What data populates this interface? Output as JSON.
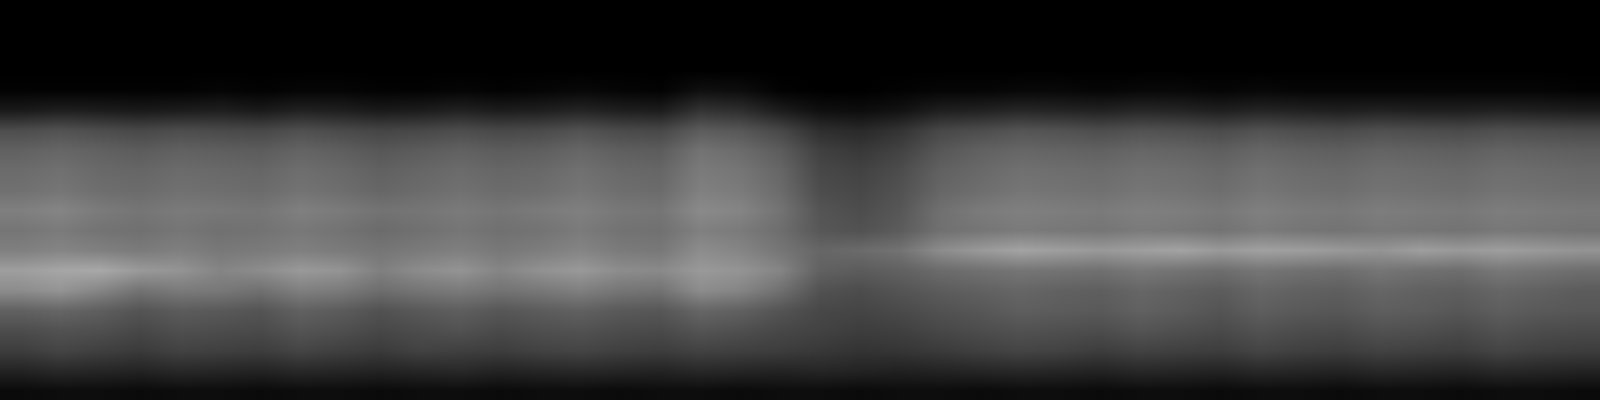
{
  "chart_data": {
    "type": "heatmap",
    "color": "gray",
    "tick_labels": false,
    "zlim": [
      0,
      100
    ],
    "z": [
      [
        4,
        5,
        5,
        4,
        5,
        5,
        4,
        5,
        5,
        4,
        5,
        5,
        4,
        5,
        5,
        4,
        5,
        5,
        4,
        5,
        5,
        4,
        5,
        5,
        4,
        5,
        5,
        4,
        5,
        5,
        4,
        5,
        5,
        4,
        5,
        5,
        4,
        5,
        5,
        4
      ],
      [
        14,
        16,
        15,
        14,
        16,
        15,
        14,
        16,
        15,
        14,
        15,
        16,
        14,
        15,
        16,
        15,
        14,
        16,
        15,
        14,
        15,
        14,
        13,
        14,
        15,
        16,
        15,
        14,
        16,
        15,
        14,
        16,
        15,
        14,
        16,
        15,
        14,
        16,
        15,
        14
      ],
      [
        24,
        27,
        25,
        23,
        26,
        25,
        24,
        27,
        25,
        23,
        26,
        25,
        24,
        26,
        27,
        25,
        24,
        26,
        25,
        24,
        22,
        20,
        21,
        23,
        25,
        27,
        26,
        24,
        26,
        25,
        24,
        27,
        25,
        24,
        26,
        25,
        24,
        27,
        25,
        24
      ],
      [
        30,
        32,
        31,
        28,
        31,
        30,
        29,
        33,
        31,
        28,
        30,
        32,
        29,
        31,
        32,
        30,
        29,
        33,
        31,
        28,
        26,
        24,
        25,
        28,
        30,
        32,
        31,
        30,
        33,
        31,
        29,
        32,
        30,
        29,
        32,
        31,
        29,
        32,
        30,
        29
      ],
      [
        38,
        40,
        37,
        33,
        36,
        35,
        33,
        38,
        36,
        32,
        35,
        37,
        34,
        36,
        38,
        35,
        34,
        40,
        38,
        33,
        28,
        27,
        29,
        32,
        34,
        37,
        36,
        35,
        38,
        36,
        33,
        37,
        35,
        34,
        37,
        36,
        34,
        37,
        35,
        34
      ],
      [
        55,
        58,
        52,
        45,
        48,
        47,
        44,
        50,
        48,
        43,
        46,
        48,
        45,
        47,
        50,
        46,
        45,
        55,
        52,
        44,
        32,
        30,
        33,
        36,
        38,
        40,
        38,
        37,
        40,
        38,
        36,
        40,
        38,
        37,
        40,
        38,
        37,
        40,
        38,
        36
      ],
      [
        62,
        65,
        66,
        60,
        58,
        52,
        55,
        60,
        58,
        50,
        55,
        58,
        52,
        57,
        60,
        55,
        54,
        60,
        58,
        52,
        38,
        36,
        38,
        42,
        44,
        46,
        45,
        44,
        47,
        45,
        43,
        46,
        44,
        43,
        46,
        44,
        43,
        47,
        45,
        43
      ],
      [
        50,
        52,
        50,
        48,
        50,
        47,
        48,
        50,
        48,
        46,
        48,
        50,
        47,
        49,
        52,
        48,
        47,
        55,
        52,
        46,
        40,
        42,
        45,
        55,
        60,
        64,
        62,
        60,
        62,
        64,
        60,
        63,
        62,
        60,
        58,
        62,
        60,
        62,
        60,
        58
      ],
      [
        46,
        48,
        45,
        44,
        46,
        44,
        45,
        47,
        45,
        42,
        44,
        46,
        44,
        45,
        48,
        45,
        44,
        50,
        48,
        43,
        34,
        32,
        36,
        44,
        46,
        48,
        47,
        46,
        48,
        47,
        45,
        48,
        46,
        45,
        47,
        46,
        45,
        47,
        46,
        45
      ],
      [
        50,
        52,
        48,
        46,
        48,
        47,
        46,
        50,
        48,
        45,
        46,
        48,
        46,
        48,
        50,
        47,
        46,
        54,
        52,
        45,
        33,
        30,
        34,
        44,
        48,
        50,
        49,
        48,
        50,
        49,
        47,
        50,
        48,
        47,
        49,
        48,
        47,
        49,
        48,
        47
      ],
      [
        44,
        46,
        43,
        42,
        44,
        43,
        42,
        45,
        43,
        40,
        42,
        44,
        42,
        43,
        46,
        43,
        42,
        50,
        48,
        42,
        30,
        28,
        32,
        40,
        43,
        46,
        45,
        44,
        46,
        45,
        43,
        46,
        44,
        43,
        45,
        44,
        43,
        45,
        44,
        43
      ],
      [
        42,
        44,
        41,
        40,
        42,
        41,
        40,
        43,
        41,
        38,
        40,
        42,
        40,
        41,
        44,
        41,
        40,
        48,
        46,
        40,
        28,
        26,
        30,
        38,
        41,
        44,
        43,
        42,
        44,
        43,
        41,
        44,
        42,
        41,
        43,
        42,
        41,
        43,
        42,
        41
      ],
      [
        38,
        40,
        38,
        36,
        38,
        37,
        36,
        39,
        37,
        34,
        36,
        38,
        36,
        37,
        40,
        37,
        36,
        45,
        42,
        36,
        25,
        22,
        26,
        34,
        38,
        40,
        39,
        38,
        40,
        39,
        37,
        40,
        38,
        37,
        39,
        38,
        37,
        39,
        38,
        37
      ],
      [
        30,
        32,
        30,
        28,
        30,
        29,
        28,
        31,
        29,
        27,
        28,
        30,
        28,
        29,
        32,
        29,
        28,
        36,
        34,
        28,
        18,
        16,
        20,
        28,
        30,
        33,
        32,
        30,
        32,
        31,
        29,
        32,
        30,
        29,
        31,
        30,
        29,
        31,
        30,
        29
      ],
      [
        10,
        12,
        11,
        10,
        11,
        12,
        10,
        13,
        12,
        10,
        11,
        13,
        11,
        12,
        14,
        12,
        11,
        20,
        18,
        11,
        6,
        5,
        7,
        12,
        13,
        15,
        14,
        13,
        15,
        14,
        12,
        14,
        13,
        12,
        13,
        12,
        12,
        13,
        12,
        11
      ],
      [
        1,
        1,
        1,
        1,
        1,
        2,
        1,
        2,
        2,
        1,
        1,
        2,
        1,
        2,
        3,
        2,
        1,
        6,
        5,
        1,
        0,
        0,
        1,
        2,
        2,
        3,
        3,
        2,
        3,
        3,
        2,
        3,
        2,
        2,
        2,
        2,
        2,
        2,
        2,
        1
      ],
      [
        0,
        0,
        0,
        0,
        0,
        0,
        0,
        0,
        0,
        0,
        0,
        0,
        0,
        0,
        0,
        0,
        0,
        0,
        0,
        0,
        0,
        0,
        0,
        0,
        0,
        0,
        0,
        0,
        0,
        0,
        0,
        0,
        0,
        0,
        0,
        0,
        0,
        0,
        0,
        0
      ],
      [
        0,
        0,
        0,
        0,
        0,
        0,
        0,
        0,
        0,
        0,
        0,
        0,
        0,
        0,
        0,
        0,
        0,
        0,
        0,
        0,
        0,
        0,
        0,
        0,
        0,
        0,
        0,
        0,
        0,
        0,
        0,
        0,
        0,
        0,
        0,
        0,
        0,
        0,
        0,
        0
      ],
      [
        0,
        0,
        0,
        0,
        0,
        0,
        0,
        0,
        0,
        0,
        0,
        0,
        0,
        0,
        0,
        0,
        0,
        0,
        0,
        0,
        0,
        0,
        0,
        0,
        0,
        0,
        0,
        0,
        0,
        0,
        0,
        0,
        0,
        0,
        0,
        0,
        0,
        0,
        0,
        0
      ],
      [
        0,
        0,
        0,
        0,
        0,
        0,
        0,
        0,
        0,
        0,
        0,
        0,
        0,
        0,
        0,
        0,
        0,
        0,
        0,
        0,
        0,
        0,
        0,
        0,
        0,
        0,
        0,
        0,
        0,
        0,
        0,
        0,
        0,
        0,
        0,
        0,
        0,
        0,
        0,
        0
      ]
    ]
  }
}
